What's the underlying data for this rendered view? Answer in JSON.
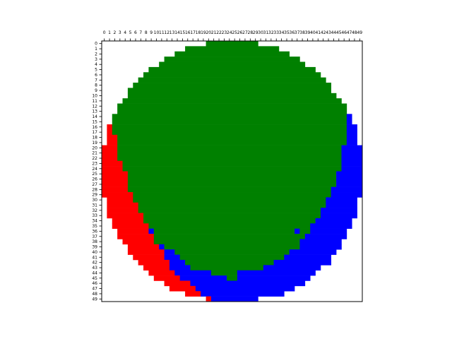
{
  "chart_data": {
    "type": "heatmap",
    "title": "",
    "xlabel": "",
    "ylabel": "",
    "x_ticks": [
      0,
      1,
      2,
      3,
      4,
      5,
      6,
      7,
      8,
      9,
      10,
      11,
      12,
      13,
      14,
      15,
      16,
      17,
      18,
      19,
      20,
      21,
      22,
      23,
      24,
      25,
      26,
      27,
      28,
      29,
      30,
      31,
      32,
      33,
      34,
      35,
      36,
      37,
      38,
      39,
      40,
      41,
      42,
      43,
      44,
      45,
      46,
      47,
      48,
      49
    ],
    "y_ticks": [
      0,
      1,
      2,
      3,
      4,
      5,
      6,
      7,
      8,
      9,
      10,
      11,
      12,
      13,
      14,
      15,
      16,
      17,
      18,
      19,
      20,
      21,
      22,
      23,
      24,
      25,
      26,
      27,
      28,
      29,
      30,
      31,
      32,
      33,
      34,
      35,
      36,
      37,
      38,
      39,
      40,
      41,
      42,
      43,
      44,
      45,
      46,
      47,
      48,
      49
    ],
    "x_tick_position": "top",
    "y_axis_inverted": true,
    "grid": false,
    "colors": {
      "R": "#ff0000",
      "G": "#008000",
      "B": "#0000ff"
    },
    "legend": "none",
    "encoding": "Each row lists colored runs as [start_col, end_col, code]; cells not covered are white.",
    "rows": [
      [
        [
          20,
          29,
          "G"
        ]
      ],
      [
        [
          16,
          33,
          "G"
        ]
      ],
      [
        [
          14,
          35,
          "G"
        ]
      ],
      [
        [
          12,
          37,
          "G"
        ]
      ],
      [
        [
          11,
          38,
          "G"
        ]
      ],
      [
        [
          9,
          40,
          "G"
        ]
      ],
      [
        [
          8,
          41,
          "G"
        ]
      ],
      [
        [
          7,
          42,
          "G"
        ]
      ],
      [
        [
          6,
          43,
          "G"
        ]
      ],
      [
        [
          5,
          43,
          "G"
        ]
      ],
      [
        [
          5,
          44,
          "G"
        ]
      ],
      [
        [
          4,
          45,
          "G"
        ]
      ],
      [
        [
          3,
          46,
          "G"
        ]
      ],
      [
        [
          3,
          46,
          "G"
        ]
      ],
      [
        [
          2,
          46,
          "G"
        ],
        [
          47,
          47,
          "B"
        ]
      ],
      [
        [
          2,
          46,
          "G"
        ],
        [
          47,
          47,
          "B"
        ]
      ],
      [
        [
          1,
          1,
          "R"
        ],
        [
          2,
          46,
          "G"
        ],
        [
          47,
          48,
          "B"
        ]
      ],
      [
        [
          1,
          1,
          "R"
        ],
        [
          2,
          46,
          "G"
        ],
        [
          47,
          48,
          "B"
        ]
      ],
      [
        [
          1,
          2,
          "R"
        ],
        [
          3,
          46,
          "G"
        ],
        [
          47,
          48,
          "B"
        ]
      ],
      [
        [
          1,
          2,
          "R"
        ],
        [
          3,
          46,
          "G"
        ],
        [
          47,
          48,
          "B"
        ]
      ],
      [
        [
          0,
          2,
          "R"
        ],
        [
          3,
          45,
          "G"
        ],
        [
          46,
          49,
          "B"
        ]
      ],
      [
        [
          0,
          2,
          "R"
        ],
        [
          3,
          45,
          "G"
        ],
        [
          46,
          49,
          "B"
        ]
      ],
      [
        [
          0,
          2,
          "R"
        ],
        [
          3,
          45,
          "G"
        ],
        [
          46,
          49,
          "B"
        ]
      ],
      [
        [
          0,
          3,
          "R"
        ],
        [
          4,
          45,
          "G"
        ],
        [
          46,
          49,
          "B"
        ]
      ],
      [
        [
          0,
          3,
          "R"
        ],
        [
          4,
          45,
          "G"
        ],
        [
          46,
          49,
          "B"
        ]
      ],
      [
        [
          0,
          4,
          "R"
        ],
        [
          5,
          44,
          "G"
        ],
        [
          45,
          49,
          "B"
        ]
      ],
      [
        [
          0,
          4,
          "R"
        ],
        [
          5,
          44,
          "G"
        ],
        [
          45,
          49,
          "B"
        ]
      ],
      [
        [
          0,
          4,
          "R"
        ],
        [
          5,
          44,
          "G"
        ],
        [
          45,
          49,
          "B"
        ]
      ],
      [
        [
          0,
          4,
          "R"
        ],
        [
          5,
          43,
          "G"
        ],
        [
          44,
          49,
          "B"
        ]
      ],
      [
        [
          0,
          5,
          "R"
        ],
        [
          6,
          43,
          "G"
        ],
        [
          44,
          49,
          "B"
        ]
      ],
      [
        [
          1,
          5,
          "R"
        ],
        [
          6,
          42,
          "G"
        ],
        [
          43,
          48,
          "B"
        ]
      ],
      [
        [
          1,
          6,
          "R"
        ],
        [
          7,
          42,
          "G"
        ],
        [
          43,
          48,
          "B"
        ]
      ],
      [
        [
          1,
          6,
          "R"
        ],
        [
          7,
          41,
          "G"
        ],
        [
          42,
          48,
          "B"
        ]
      ],
      [
        [
          1,
          7,
          "R"
        ],
        [
          8,
          41,
          "G"
        ],
        [
          42,
          48,
          "B"
        ]
      ],
      [
        [
          2,
          7,
          "R"
        ],
        [
          8,
          40,
          "G"
        ],
        [
          41,
          47,
          "B"
        ]
      ],
      [
        [
          2,
          8,
          "R"
        ],
        [
          9,
          39,
          "G"
        ],
        [
          40,
          47,
          "B"
        ]
      ],
      [
        [
          3,
          8,
          "R"
        ],
        [
          9,
          9,
          "B"
        ],
        [
          10,
          36,
          "G"
        ],
        [
          37,
          37,
          "B"
        ],
        [
          38,
          39,
          "G"
        ],
        [
          40,
          46,
          "B"
        ]
      ],
      [
        [
          3,
          9,
          "R"
        ],
        [
          10,
          38,
          "G"
        ],
        [
          39,
          46,
          "B"
        ]
      ],
      [
        [
          4,
          9,
          "R"
        ],
        [
          10,
          37,
          "G"
        ],
        [
          38,
          45,
          "B"
        ]
      ],
      [
        [
          5,
          10,
          "R"
        ],
        [
          11,
          11,
          "B"
        ],
        [
          12,
          37,
          "G"
        ],
        [
          38,
          45,
          "B"
        ]
      ],
      [
        [
          5,
          11,
          "R"
        ],
        [
          12,
          13,
          "B"
        ],
        [
          14,
          35,
          "G"
        ],
        [
          36,
          44,
          "B"
        ]
      ],
      [
        [
          6,
          11,
          "R"
        ],
        [
          12,
          14,
          "B"
        ],
        [
          15,
          34,
          "G"
        ],
        [
          35,
          43,
          "B"
        ]
      ],
      [
        [
          7,
          12,
          "R"
        ],
        [
          13,
          15,
          "B"
        ],
        [
          16,
          32,
          "G"
        ],
        [
          33,
          43,
          "B"
        ]
      ],
      [
        [
          8,
          12,
          "R"
        ],
        [
          13,
          16,
          "B"
        ],
        [
          17,
          30,
          "G"
        ],
        [
          31,
          41,
          "B"
        ]
      ],
      [
        [
          9,
          13,
          "R"
        ],
        [
          14,
          20,
          "B"
        ],
        [
          21,
          25,
          "G"
        ],
        [
          26,
          40,
          "B"
        ]
      ],
      [
        [
          10,
          14,
          "R"
        ],
        [
          15,
          23,
          "B"
        ],
        [
          24,
          25,
          "G"
        ],
        [
          26,
          39,
          "B"
        ]
      ],
      [
        [
          12,
          16,
          "R"
        ],
        [
          17,
          38,
          "B"
        ]
      ],
      [
        [
          13,
          17,
          "R"
        ],
        [
          18,
          36,
          "B"
        ]
      ],
      [
        [
          16,
          18,
          "R"
        ],
        [
          19,
          34,
          "B"
        ]
      ],
      [
        [
          20,
          20,
          "R"
        ],
        [
          21,
          29,
          "B"
        ]
      ]
    ]
  }
}
